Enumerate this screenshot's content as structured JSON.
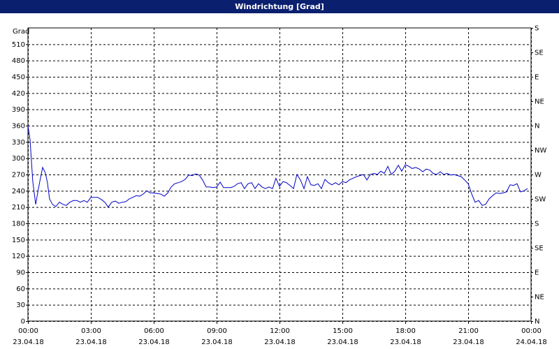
{
  "chart_data": {
    "type": "line",
    "title": "Windrichtung [Grad]",
    "ylabel": "Grad",
    "xlim": [
      0,
      24
    ],
    "xticks": [
      {
        "value": 0,
        "label": "00:00"
      },
      {
        "value": 3,
        "label": "03:00"
      },
      {
        "value": 6,
        "label": "06:00"
      },
      {
        "value": 9,
        "label": "09:00"
      },
      {
        "value": 12,
        "label": "12:00"
      },
      {
        "value": 15,
        "label": "15:00"
      },
      {
        "value": 18,
        "label": "18:00"
      },
      {
        "value": 21,
        "label": "21:00"
      },
      {
        "value": 24,
        "label": "00:00"
      }
    ],
    "xtick_dates": [
      "23.04.18",
      "23.04.18",
      "23.04.18",
      "23.04.18",
      "23.04.18",
      "23.04.18",
      "23.04.18",
      "23.04.18",
      "24.04.18"
    ],
    "ylim": [
      0,
      540
    ],
    "yticks": [
      0,
      30,
      60,
      90,
      120,
      150,
      180,
      210,
      240,
      270,
      300,
      330,
      360,
      390,
      420,
      450,
      480,
      510
    ],
    "y2lim": [
      0,
      540
    ],
    "y2ticks": [
      {
        "value": 0,
        "label": "N"
      },
      {
        "value": 45,
        "label": "NE"
      },
      {
        "value": 90,
        "label": "E"
      },
      {
        "value": 135,
        "label": "SE"
      },
      {
        "value": 180,
        "label": "S"
      },
      {
        "value": 225,
        "label": "SW"
      },
      {
        "value": 270,
        "label": "W"
      },
      {
        "value": 315,
        "label": "NW"
      },
      {
        "value": 360,
        "label": "N"
      },
      {
        "value": 405,
        "label": "NE"
      },
      {
        "value": 450,
        "label": "E"
      },
      {
        "value": 495,
        "label": "SE"
      },
      {
        "value": 540,
        "label": "S"
      }
    ],
    "grid": true,
    "x": [
      0,
      0.1,
      0.23,
      0.37,
      0.5,
      0.6,
      0.7,
      0.83,
      0.93,
      1.03,
      1.17,
      1.33,
      1.5,
      1.67,
      1.83,
      2,
      2.17,
      2.33,
      2.5,
      2.67,
      2.83,
      3,
      3.17,
      3.33,
      3.5,
      3.67,
      3.83,
      4,
      4.17,
      4.33,
      4.5,
      4.67,
      4.83,
      5,
      5.17,
      5.33,
      5.5,
      5.67,
      5.83,
      6,
      6.17,
      6.33,
      6.5,
      6.67,
      6.83,
      7,
      7.17,
      7.33,
      7.5,
      7.67,
      7.83,
      8,
      8.17,
      8.33,
      8.5,
      8.67,
      8.83,
      9,
      9.17,
      9.33,
      9.5,
      9.67,
      9.83,
      10,
      10.17,
      10.33,
      10.5,
      10.67,
      10.83,
      11,
      11.17,
      11.33,
      11.5,
      11.67,
      11.83,
      12,
      12.17,
      12.33,
      12.5,
      12.67,
      12.83,
      13,
      13.17,
      13.33,
      13.5,
      13.67,
      13.83,
      14,
      14.17,
      14.33,
      14.5,
      14.67,
      14.83,
      15,
      15.17,
      15.33,
      15.5,
      15.67,
      15.83,
      16,
      16.17,
      16.33,
      16.5,
      16.67,
      16.83,
      17,
      17.17,
      17.33,
      17.5,
      17.67,
      17.83,
      18,
      18.17,
      18.33,
      18.5,
      18.67,
      18.83,
      19,
      19.17,
      19.33,
      19.5,
      19.67,
      19.83,
      20,
      20.17,
      20.33,
      20.5,
      20.67,
      20.83,
      21,
      21.17,
      21.33,
      21.5,
      21.67,
      21.83,
      22,
      22.17,
      22.33,
      22.5,
      22.67,
      22.83,
      23,
      23.17,
      23.33,
      23.5,
      23.67,
      23.83
    ],
    "series": [
      {
        "color": "#0000c8",
        "values": [
          360,
          334,
          257,
          215,
          244,
          264,
          283,
          273,
          255,
          225,
          215,
          211,
          219,
          215,
          213,
          219,
          222,
          222,
          219,
          222,
          219,
          228,
          228,
          228,
          224,
          219,
          210,
          219,
          221,
          217,
          219,
          220,
          225,
          228,
          231,
          230,
          234,
          240,
          236,
          236,
          235,
          234,
          230,
          236,
          247,
          253,
          255,
          257,
          261,
          269,
          268,
          271,
          269,
          260,
          247,
          247,
          246,
          247,
          256,
          246,
          246,
          246,
          248,
          253,
          255,
          244,
          253,
          255,
          244,
          253,
          247,
          244,
          247,
          244,
          263,
          248,
          257,
          255,
          250,
          244,
          270,
          260,
          244,
          266,
          251,
          250,
          253,
          244,
          261,
          255,
          251,
          255,
          251,
          257,
          255,
          260,
          263,
          266,
          268,
          270,
          260,
          270,
          272,
          270,
          276,
          272,
          285,
          270,
          276,
          287,
          276,
          288,
          285,
          281,
          283,
          280,
          275,
          280,
          278,
          272,
          270,
          275,
          270,
          272,
          269,
          270,
          268,
          266,
          260,
          253,
          234,
          219,
          222,
          213,
          215,
          225,
          231,
          236,
          235,
          236,
          238,
          251,
          250,
          253,
          238,
          240,
          244
        ]
      }
    ]
  }
}
